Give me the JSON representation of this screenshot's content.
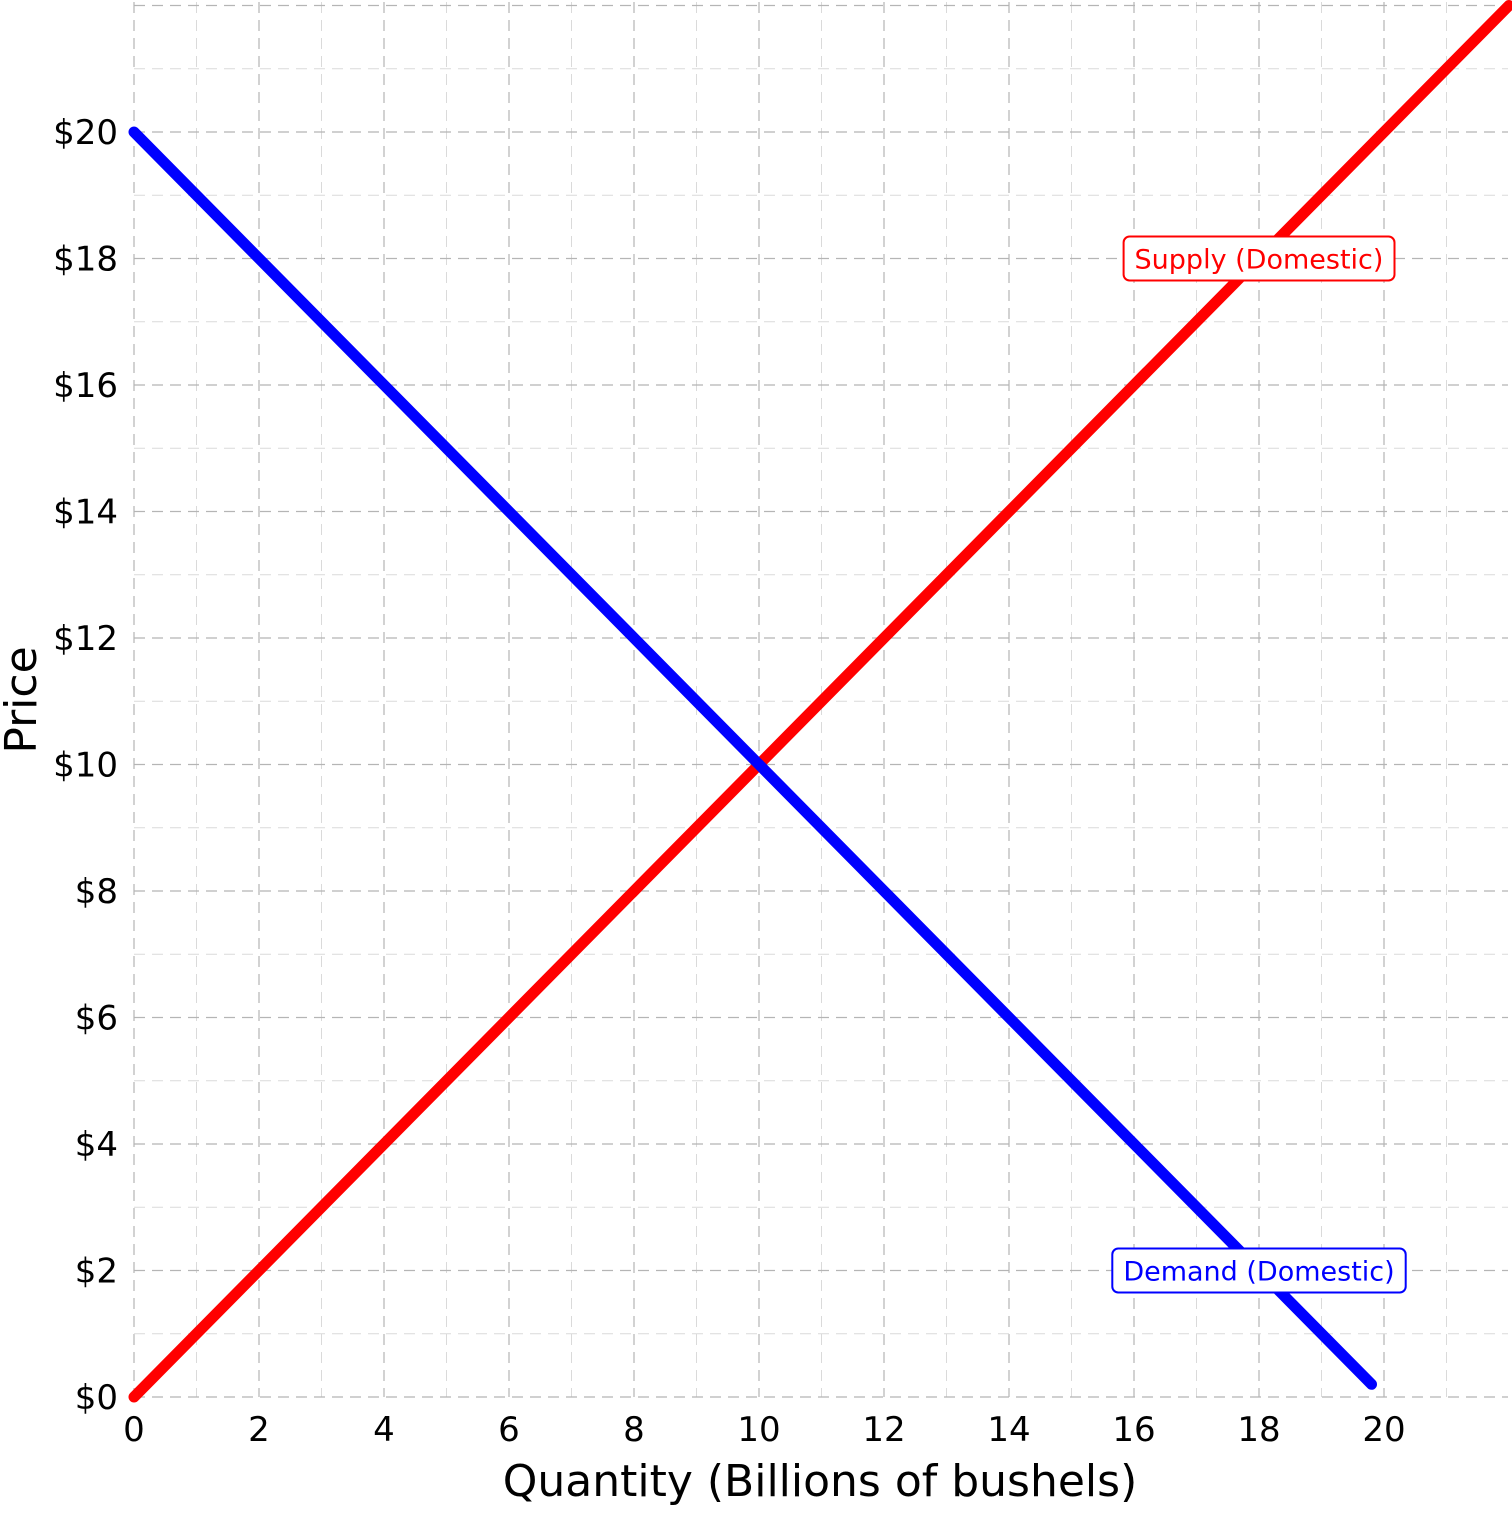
{
  "chart_data": {
    "type": "line",
    "title": "",
    "xlabel": "Quantity (Billions of bushels)",
    "ylabel": "Price",
    "xlim": [
      0,
      22
    ],
    "ylim": [
      0,
      22
    ],
    "x_ticks": [
      "0",
      "2",
      "4",
      "6",
      "8",
      "10",
      "12",
      "14",
      "16",
      "18",
      "20"
    ],
    "x_tick_values": [
      0,
      2,
      4,
      6,
      8,
      10,
      12,
      14,
      16,
      18,
      20
    ],
    "y_ticks": [
      "$0",
      "$2",
      "$4",
      "$6",
      "$8",
      "$10",
      "$12",
      "$14",
      "$16",
      "$18",
      "$20"
    ],
    "y_tick_values": [
      0,
      2,
      4,
      6,
      8,
      10,
      12,
      14,
      16,
      18,
      20
    ],
    "grid": true,
    "grid_style": "dashed",
    "legend": "none",
    "series": [
      {
        "name": "Supply (Domestic)",
        "color": "#ff0000",
        "x": [
          0,
          22
        ],
        "y": [
          0,
          22
        ],
        "label_at": [
          18,
          18
        ]
      },
      {
        "name": "Demand (Domestic)",
        "color": "#0000ff",
        "x": [
          0,
          19.8
        ],
        "y": [
          20,
          0.2
        ],
        "label_at": [
          18,
          2
        ]
      }
    ]
  }
}
